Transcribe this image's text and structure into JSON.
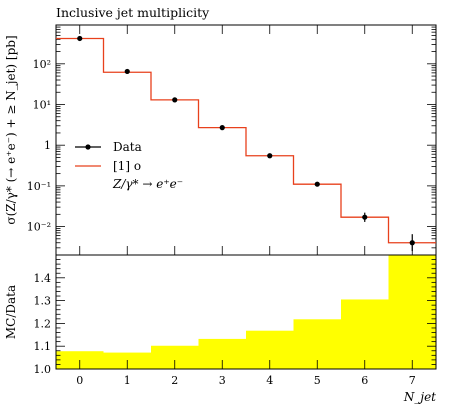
{
  "chart_data": [
    {
      "type": "line",
      "title": "Inclusive jet multiplicity",
      "ylabel": "σ(Z/γ* (→ e⁺e⁻) + ≥ N_jet) [pb]",
      "xlabel": "N_jet",
      "x": [
        0,
        1,
        2,
        3,
        4,
        5,
        6,
        7
      ],
      "xlim": [
        -0.5,
        7.5
      ],
      "ylim": [
        0.002,
        900
      ],
      "yscale": "log",
      "ytick_values": [
        0.01,
        0.1,
        1,
        10,
        100
      ],
      "ytick_labels": [
        "10⁻²",
        "10⁻¹",
        "1",
        "10¹",
        "10²"
      ],
      "legend": {
        "placement": "left",
        "data_label": "Data",
        "mc_label": "[1] o",
        "process_label": "Z/γ* → e⁺e⁻"
      },
      "series": [
        {
          "name": "Data",
          "style": "points",
          "values": [
            420,
            65,
            13,
            2.7,
            0.55,
            0.11,
            0.017,
            0.004
          ],
          "err_up": [
            440,
            68,
            13.7,
            2.9,
            0.6,
            0.125,
            0.022,
            0.0065
          ],
          "err_down": [
            400,
            62,
            12.3,
            2.5,
            0.5,
            0.097,
            0.013,
            0.0025
          ],
          "color": "#000000"
        },
        {
          "name": "[1] o",
          "style": "step",
          "values": [
            420,
            62,
            13,
            2.7,
            0.55,
            0.11,
            0.017,
            0.004
          ],
          "color": "#e8401c"
        }
      ]
    },
    {
      "type": "bar",
      "ylabel": "MC/Data",
      "xlabel": "N_jet",
      "x": [
        0,
        1,
        2,
        3,
        4,
        5,
        6,
        7
      ],
      "xtick_labels": [
        "0",
        "1",
        "2",
        "3",
        "4",
        "5",
        "6",
        "7"
      ],
      "xlim": [
        -0.5,
        7.5
      ],
      "ylim": [
        1.0,
        1.5
      ],
      "ytick_values": [
        1.0,
        1.1,
        1.2,
        1.3,
        1.4
      ],
      "ytick_labels": [
        "1.0",
        "1.1",
        "1.2",
        "1.3",
        "1.4"
      ],
      "band_color": "#ffff00",
      "series": [
        {
          "name": "",
          "values": [
            1.078,
            1.072,
            1.102,
            1.132,
            1.168,
            1.218,
            1.305,
            1.5
          ]
        }
      ]
    }
  ]
}
